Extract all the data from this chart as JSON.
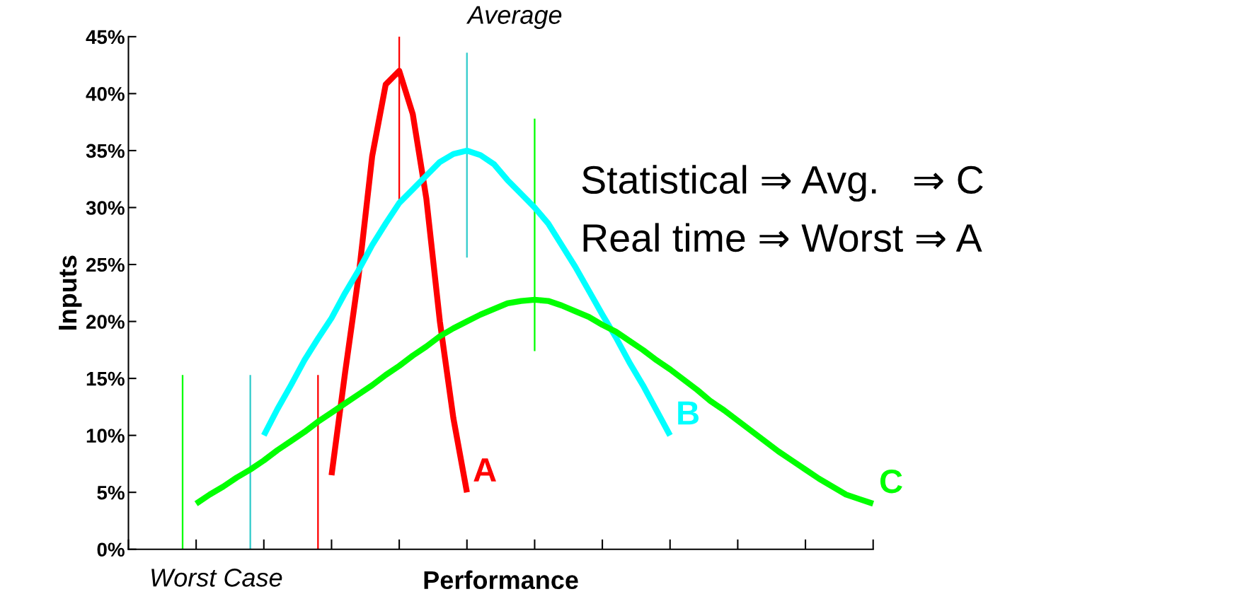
{
  "chart_data": {
    "type": "line",
    "xlabel": "Performance",
    "ylabel": "Inputs",
    "categories": [
      null,
      null,
      null,
      null,
      null,
      null,
      null,
      null,
      null,
      null,
      null,
      null,
      null,
      null,
      null,
      null,
      null,
      null,
      null,
      null,
      null,
      null,
      null,
      null,
      null,
      null,
      null,
      null,
      null,
      null,
      null,
      null,
      null,
      null,
      null,
      null,
      null,
      null,
      null,
      null,
      null,
      null,
      null,
      null,
      null,
      null,
      null,
      null,
      null,
      null,
      null,
      null,
      null,
      null,
      null,
      null
    ],
    "ylim": [
      0,
      45
    ],
    "yticks": [
      {
        "value": 0,
        "label": "0%"
      },
      {
        "value": 5,
        "label": "5%"
      },
      {
        "value": 10,
        "label": "10%"
      },
      {
        "value": 15,
        "label": "15%"
      },
      {
        "value": 20,
        "label": "20%"
      },
      {
        "value": 25,
        "label": "25%"
      },
      {
        "value": 30,
        "label": "30%"
      },
      {
        "value": 35,
        "label": "35%"
      },
      {
        "value": 40,
        "label": "40%"
      },
      {
        "value": 45,
        "label": "45%"
      }
    ],
    "grid": false,
    "legend": false,
    "marker": "none",
    "line_style": "solid",
    "series": [
      {
        "name": "A",
        "color": "#ff0000",
        "values": [
          null,
          null,
          null,
          null,
          null,
          null,
          null,
          null,
          null,
          null,
          null,
          null,
          null,
          null,
          null,
          6.5,
          15.5,
          24,
          34.5,
          40.8,
          42,
          38.2,
          30.8,
          20,
          11.5,
          5,
          null,
          null,
          null,
          null,
          null,
          null,
          null,
          null,
          null,
          null,
          null,
          null,
          null,
          null,
          null,
          null,
          null,
          null,
          null,
          null,
          null,
          null,
          null,
          null,
          null,
          null,
          null,
          null,
          null,
          null
        ]
      },
      {
        "name": "B",
        "color": "#00ffff",
        "values": [
          null,
          null,
          null,
          null,
          null,
          null,
          null,
          null,
          null,
          null,
          10,
          12.3,
          14.4,
          16.6,
          18.5,
          20.3,
          22.5,
          24.5,
          26.7,
          28.6,
          30.4,
          31.6,
          32.8,
          34,
          34.7,
          35,
          34.6,
          33.8,
          32.4,
          31.2,
          30,
          28.6,
          26.7,
          24.8,
          22.7,
          20.6,
          18.6,
          16.4,
          14.4,
          12.2,
          10,
          null,
          null,
          null,
          null,
          null,
          null,
          null,
          null,
          null,
          null,
          null,
          null,
          null,
          null,
          null
        ]
      },
      {
        "name": "C",
        "color": "#00ff00",
        "values": [
          null,
          null,
          null,
          null,
          null,
          4,
          4.8,
          5.5,
          6.3,
          7,
          7.8,
          8.7,
          9.5,
          10.3,
          11.2,
          12,
          12.8,
          13.6,
          14.4,
          15.3,
          16.1,
          17,
          17.8,
          18.7,
          19.4,
          20,
          20.6,
          21.1,
          21.6,
          21.8,
          21.9,
          21.8,
          21.4,
          20.9,
          20.4,
          19.7,
          19.1,
          18.3,
          17.5,
          16.6,
          15.8,
          14.9,
          14,
          13,
          12.2,
          11.3,
          10.4,
          9.5,
          8.6,
          7.8,
          7,
          6.2,
          5.5,
          4.8,
          4.4,
          4
        ]
      },
      {
        "type": "bar",
        "colors": [
          null,
          null,
          null,
          null,
          "#00ff00",
          null,
          null,
          null,
          null,
          "#33cccc",
          null,
          null,
          null,
          null,
          "#ff0000",
          null,
          null,
          null,
          null,
          null,
          "#ff0000",
          null,
          null,
          null,
          null,
          "#33cccc",
          null,
          null,
          null,
          null,
          "#00ff00",
          null,
          null,
          null,
          null,
          null,
          null,
          null,
          null,
          null,
          null,
          null,
          null,
          null,
          null,
          null,
          null,
          null,
          null,
          null,
          null,
          null,
          null,
          null,
          null,
          null
        ],
        "base": [
          null,
          null,
          null,
          null,
          0,
          null,
          null,
          null,
          null,
          0,
          null,
          null,
          null,
          null,
          0,
          null,
          null,
          null,
          null,
          null,
          30.3,
          null,
          null,
          null,
          null,
          25.6,
          null,
          null,
          null,
          null,
          17.4,
          null,
          null,
          null,
          null,
          null,
          null,
          null,
          null,
          null,
          null,
          null,
          null,
          null,
          null,
          null,
          null,
          null,
          null,
          null,
          null,
          null,
          null,
          null,
          null,
          null
        ],
        "values": [
          null,
          null,
          null,
          null,
          15.3,
          null,
          null,
          null,
          null,
          15.3,
          null,
          null,
          null,
          null,
          15.3,
          null,
          null,
          null,
          null,
          null,
          14.7,
          null,
          null,
          null,
          null,
          18,
          null,
          null,
          null,
          null,
          20.4,
          null,
          null,
          null,
          null,
          null,
          null,
          null,
          null,
          null,
          null,
          null,
          null,
          null,
          null,
          null,
          null,
          null,
          null,
          null,
          null,
          null,
          null,
          null,
          null,
          null
        ]
      }
    ],
    "annotations": [
      "Average",
      "Worst Case",
      "Statistical ⇒ Avg.   ⇒ C",
      "Real time ⇒ Worst ⇒ A"
    ]
  }
}
